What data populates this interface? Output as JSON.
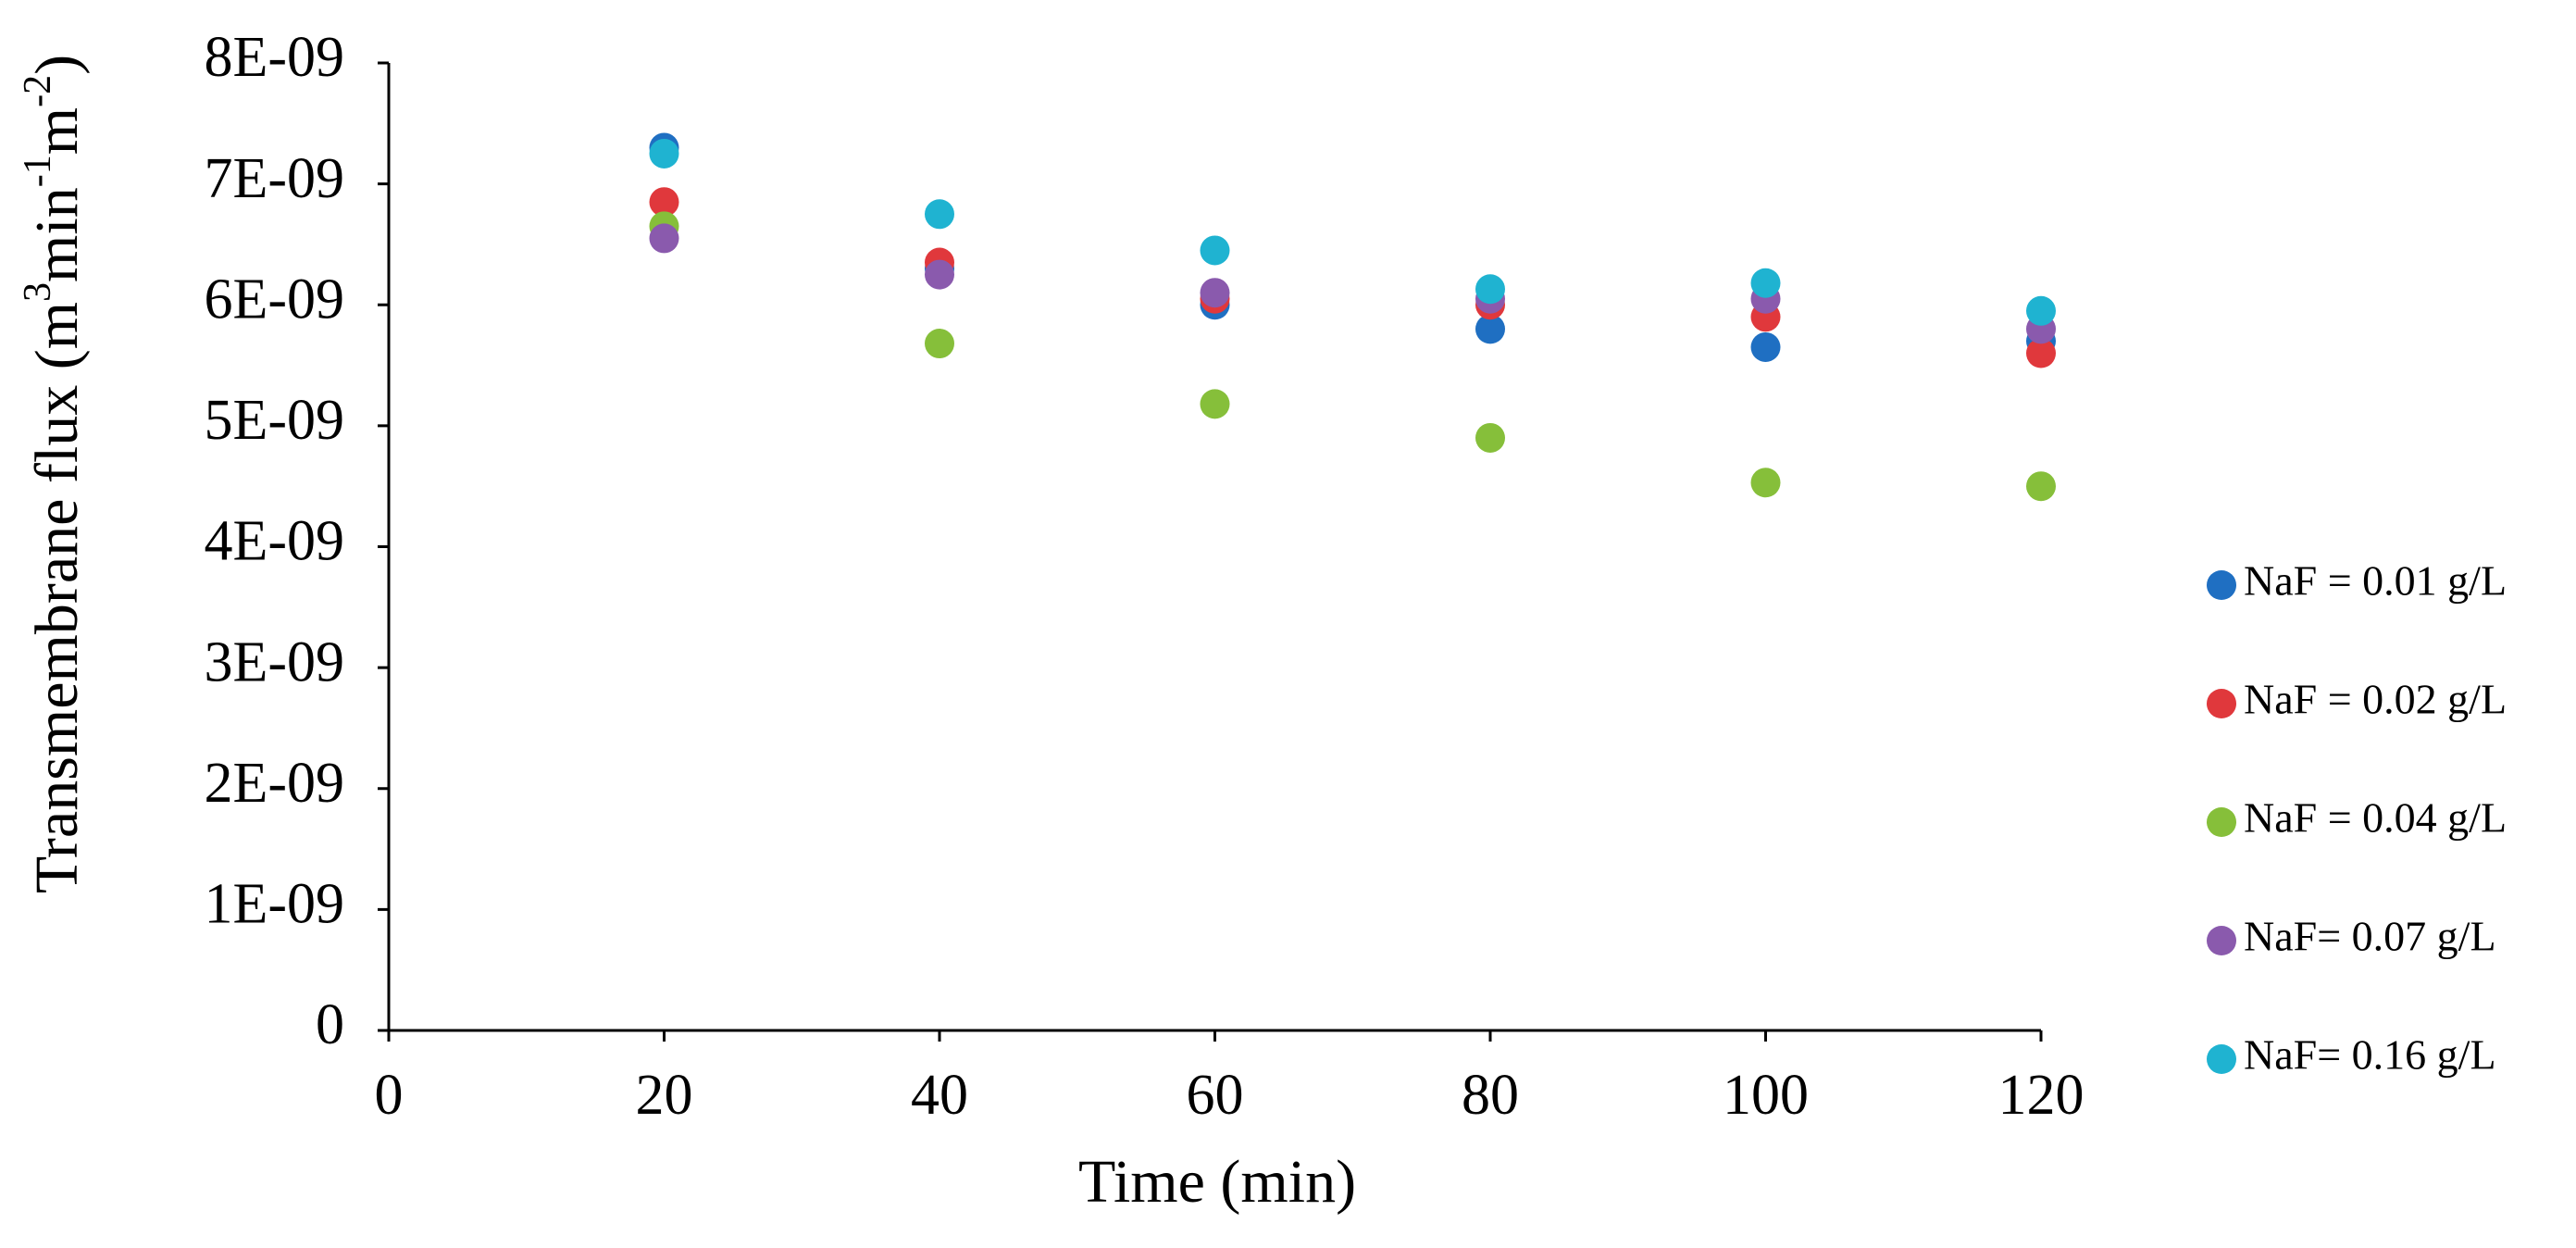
{
  "chart_data": {
    "type": "scatter",
    "xlabel": "Time (min)",
    "ylabel": {
      "base": "Transmembrane flux (m",
      "sup1": "3",
      "mid1": "min",
      "sup2": "-1",
      "mid2": "m",
      "sup3": "-2",
      "end": ")"
    },
    "xlim": [
      0,
      120
    ],
    "ylim": [
      0,
      8e-09
    ],
    "x_ticks": [
      {
        "value": 0,
        "label": "0"
      },
      {
        "value": 20,
        "label": "20"
      },
      {
        "value": 40,
        "label": "40"
      },
      {
        "value": 60,
        "label": "60"
      },
      {
        "value": 80,
        "label": "80"
      },
      {
        "value": 100,
        "label": "100"
      },
      {
        "value": 120,
        "label": "120"
      }
    ],
    "y_ticks": [
      {
        "value": 0,
        "label": "0"
      },
      {
        "value": 1e-09,
        "label": "1E-09"
      },
      {
        "value": 2e-09,
        "label": "2E-09"
      },
      {
        "value": 3e-09,
        "label": "3E-09"
      },
      {
        "value": 4e-09,
        "label": "4E-09"
      },
      {
        "value": 5e-09,
        "label": "5E-09"
      },
      {
        "value": 6e-09,
        "label": "6E-09"
      },
      {
        "value": 7e-09,
        "label": "7E-09"
      },
      {
        "value": 8e-09,
        "label": "8E-09"
      }
    ],
    "grid": false,
    "legend_position": "right",
    "x": [
      20,
      40,
      60,
      80,
      100,
      120
    ],
    "series": [
      {
        "name": "NaF = 0.01 g/L",
        "color": "#1f6fc2",
        "values": [
          7.3e-09,
          6.3e-09,
          6e-09,
          5.8e-09,
          5.65e-09,
          5.7e-09
        ]
      },
      {
        "name": "NaF = 0.02 g/L",
        "color": "#e0383c",
        "values": [
          6.85e-09,
          6.35e-09,
          6.05e-09,
          6e-09,
          5.9e-09,
          5.6e-09
        ]
      },
      {
        "name": "NaF = 0.04 g/L",
        "color": "#86bf3a",
        "values": [
          6.65e-09,
          5.68e-09,
          5.18e-09,
          4.9e-09,
          4.53e-09,
          4.5e-09
        ]
      },
      {
        "name": "NaF= 0.07 g/L",
        "color": "#8a5aad",
        "values": [
          6.55e-09,
          6.25e-09,
          6.1e-09,
          6.05e-09,
          6.05e-09,
          5.8e-09
        ]
      },
      {
        "name": "NaF= 0.16 g/L",
        "color": "#1fb3d1",
        "values": [
          7.25e-09,
          6.75e-09,
          6.45e-09,
          6.13e-09,
          6.18e-09,
          5.95e-09
        ]
      }
    ]
  }
}
